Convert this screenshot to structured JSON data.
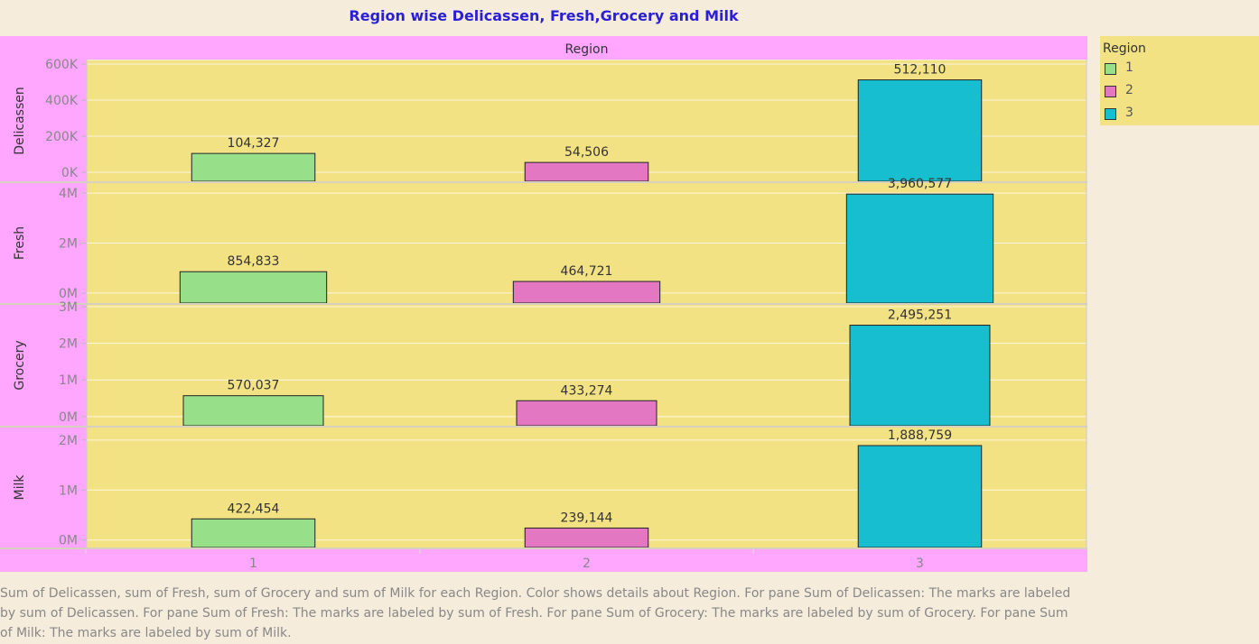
{
  "title": "Region wise Delicassen, Fresh,Grocery and Milk",
  "column_header": "Region",
  "legend": {
    "title": "Region",
    "items": [
      {
        "label": "1",
        "color": "#98df8a"
      },
      {
        "label": "2",
        "color": "#e377c2"
      },
      {
        "label": "3",
        "color": "#17becf"
      }
    ]
  },
  "caption": "Sum of Delicassen, sum of Fresh, sum of Grocery and sum of Milk for each Region.  Color shows details about Region.  For pane Sum of Delicassen:  The marks are labeled by sum of Delicassen.  For pane Sum of Fresh:  The marks are labeled by sum of Fresh.  For pane Sum of Grocery:  The marks are labeled by sum of Grocery.  For pane Sum of Milk:  The marks are labeled by sum of Milk.",
  "colors": {
    "plot_background": "#f2e283",
    "header_background": "#ffa6ff",
    "page_background": "#f5ecdc",
    "title": "#2a1fd6"
  },
  "chart_data": {
    "type": "bar",
    "categories": [
      "1",
      "2",
      "3"
    ],
    "panes": [
      {
        "label": "Delicassen",
        "values": [
          104327,
          54506,
          512110
        ],
        "data_labels": [
          "104,327",
          "54,506",
          "512,110"
        ],
        "ylim": [
          -50000,
          620000
        ],
        "ticks": [
          {
            "value": 0,
            "label": "0K"
          },
          {
            "value": 200000,
            "label": "200K"
          },
          {
            "value": 400000,
            "label": "400K"
          },
          {
            "value": 600000,
            "label": "600K"
          }
        ]
      },
      {
        "label": "Fresh",
        "values": [
          854833,
          464721,
          3960577
        ],
        "data_labels": [
          "854,833",
          "464,721",
          "3,960,577"
        ],
        "ylim": [
          -400000,
          4400000
        ],
        "ticks": [
          {
            "value": 0,
            "label": "0M"
          },
          {
            "value": 2000000,
            "label": "2M"
          },
          {
            "value": 4000000,
            "label": "4M"
          }
        ]
      },
      {
        "label": "Grocery",
        "values": [
          570037,
          433274,
          2495251
        ],
        "data_labels": [
          "570,037",
          "433,274",
          "2,495,251"
        ],
        "ylim": [
          -250000,
          3050000
        ],
        "ticks": [
          {
            "value": 0,
            "label": "0M"
          },
          {
            "value": 1000000,
            "label": "1M"
          },
          {
            "value": 2000000,
            "label": "2M"
          },
          {
            "value": 3000000,
            "label": "3M"
          }
        ]
      },
      {
        "label": "Milk",
        "values": [
          422454,
          239144,
          1888759
        ],
        "data_labels": [
          "422,454",
          "239,144",
          "1,888,759"
        ],
        "ylim": [
          -150000,
          2250000
        ],
        "ticks": [
          {
            "value": 0,
            "label": "0M"
          },
          {
            "value": 1000000,
            "label": "1M"
          },
          {
            "value": 2000000,
            "label": "2M"
          }
        ]
      }
    ],
    "bar_widths_relative": [
      [
        0.37,
        0.37,
        0.37
      ],
      [
        0.44,
        0.44,
        0.44
      ],
      [
        0.42,
        0.42,
        0.42
      ],
      [
        0.37,
        0.37,
        0.37
      ]
    ],
    "grid": true,
    "legend_position": "top-right"
  }
}
